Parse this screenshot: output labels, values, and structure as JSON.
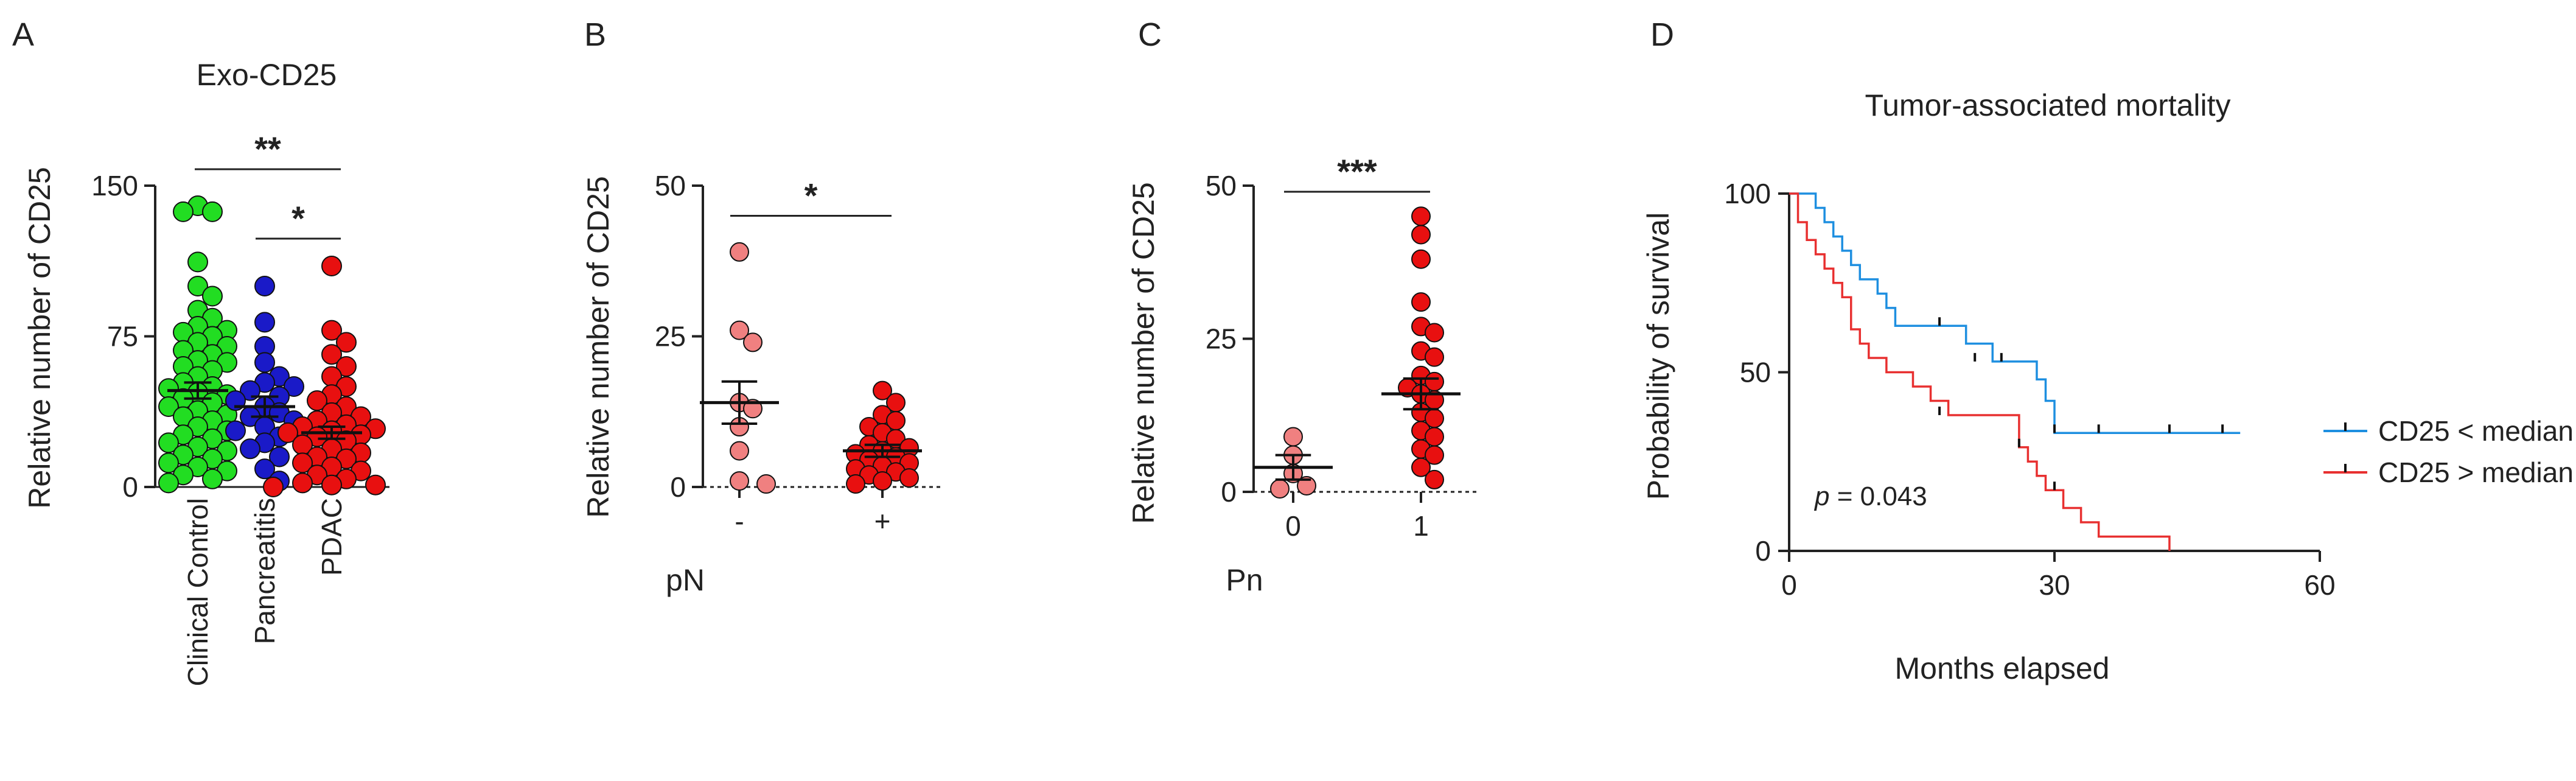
{
  "panels": {
    "A": {
      "letter": "A"
    },
    "B": {
      "letter": "B"
    },
    "C": {
      "letter": "C"
    },
    "D": {
      "letter": "D"
    }
  },
  "chart_data": [
    {
      "id": "A",
      "type": "scatter",
      "title": "Exo-CD25",
      "xlabel": "",
      "ylabel": "Relative number of CD25",
      "ylim": [
        0,
        150
      ],
      "yticks": [
        "0",
        "75",
        "150"
      ],
      "categories": [
        "Clinical Control",
        "Pancreatitis",
        "PDAC"
      ],
      "colors": [
        "#22dd22",
        "#1a1ac8",
        "#e81010"
      ],
      "series": [
        {
          "name": "Clinical Control",
          "mean": 48,
          "sem": 4,
          "values": [
            140,
            137,
            137,
            112,
            100,
            95,
            88,
            84,
            80,
            78,
            77,
            75,
            72,
            70,
            68,
            66,
            63,
            62,
            60,
            58,
            55,
            52,
            50,
            49,
            47,
            46,
            44,
            42,
            40,
            38,
            36,
            35,
            33,
            30,
            28,
            26,
            24,
            22,
            20,
            18,
            16,
            14,
            12,
            10,
            8,
            6,
            4,
            2
          ]
        },
        {
          "name": "Pancreatitis",
          "mean": 40,
          "sem": 5,
          "values": [
            100,
            82,
            70,
            62,
            55,
            52,
            50,
            48,
            45,
            43,
            40,
            37,
            35,
            33,
            30,
            28,
            25,
            22,
            19,
            15,
            9,
            3
          ]
        },
        {
          "name": "PDAC",
          "mean": 27,
          "sem": 3,
          "values": [
            110,
            78,
            72,
            66,
            60,
            55,
            50,
            46,
            43,
            40,
            37,
            35,
            33,
            31,
            30,
            29,
            28,
            27,
            26,
            25,
            23,
            21,
            19,
            17,
            15,
            14,
            12,
            10,
            8,
            6,
            4,
            2,
            1,
            1,
            0
          ]
        }
      ],
      "annotations": [
        {
          "label": "**",
          "from": "Clinical Control",
          "to": "PDAC",
          "y": 142
        },
        {
          "label": "*",
          "from": "Pancreatitis",
          "to": "PDAC",
          "y": 125
        }
      ]
    },
    {
      "id": "B",
      "type": "scatter",
      "title": "",
      "xlabel": "pN",
      "ylabel": "Relative number of CD25",
      "ylim": [
        0,
        50
      ],
      "yticks": [
        "0",
        "25",
        "50"
      ],
      "categories": [
        "-",
        "+"
      ],
      "colors": [
        "#f08080",
        "#e81010"
      ],
      "series": [
        {
          "name": "-",
          "mean": 14,
          "sem": 3.5,
          "values": [
            39,
            26,
            24,
            14,
            13,
            10,
            6,
            1,
            0.5
          ]
        },
        {
          "name": "+",
          "mean": 6,
          "sem": 1,
          "values": [
            16,
            14,
            12,
            11,
            10,
            9,
            8,
            7,
            6.5,
            6,
            5.5,
            5,
            4.5,
            4,
            3.5,
            3,
            2.5,
            2,
            1.5,
            1,
            0.5
          ]
        }
      ],
      "annotations": [
        {
          "label": "*",
          "from": "-",
          "to": "+",
          "y": 45
        }
      ]
    },
    {
      "id": "C",
      "type": "scatter",
      "title": "",
      "xlabel": "Pn",
      "ylabel": "Relative number of CD25",
      "ylim": [
        0,
        50
      ],
      "yticks": [
        "0",
        "25",
        "50"
      ],
      "categories": [
        "0",
        "1"
      ],
      "colors": [
        "#f08080",
        "#e81010"
      ],
      "series": [
        {
          "name": "0",
          "mean": 4,
          "sem": 2,
          "values": [
            9,
            6,
            3,
            1,
            0.5
          ]
        },
        {
          "name": "1",
          "mean": 16,
          "sem": 2.5,
          "values": [
            45,
            42,
            38,
            31,
            27,
            26,
            23,
            22,
            19,
            18,
            17,
            16,
            15,
            13,
            12,
            10,
            9,
            7,
            6,
            4,
            2
          ]
        }
      ],
      "annotations": [
        {
          "label": "***",
          "from": "0",
          "to": "1",
          "y": 49
        }
      ]
    },
    {
      "id": "D",
      "type": "line",
      "title": "Tumor-associated mortality",
      "xlabel": "Months elapsed",
      "ylabel": "Probability of survival",
      "xlim": [
        0,
        60
      ],
      "ylim": [
        0,
        100
      ],
      "xticks": [
        "0",
        "30",
        "60"
      ],
      "yticks": [
        "0",
        "50",
        "100"
      ],
      "annotation": {
        "italic": "p",
        "text": " = 0.043"
      },
      "series": [
        {
          "name": "CD25 < median",
          "color": "#1e8fe0",
          "steps": [
            [
              0,
              100
            ],
            [
              3,
              96
            ],
            [
              4,
              92
            ],
            [
              5,
              88
            ],
            [
              6,
              84
            ],
            [
              7,
              80
            ],
            [
              8,
              76
            ],
            [
              10,
              72
            ],
            [
              11,
              68
            ],
            [
              12,
              63
            ],
            [
              17,
              63
            ],
            [
              20,
              58
            ],
            [
              23,
              53
            ],
            [
              27,
              53
            ],
            [
              28,
              48
            ],
            [
              29,
              42
            ],
            [
              30,
              33
            ],
            [
              51,
              33
            ]
          ],
          "censors": [
            [
              17,
              63
            ],
            [
              21,
              53
            ],
            [
              24,
              53
            ],
            [
              30,
              33
            ],
            [
              35,
              33
            ],
            [
              43,
              33
            ],
            [
              49,
              33
            ]
          ]
        },
        {
          "name": "CD25 > median",
          "color": "#e83030",
          "steps": [
            [
              0,
              100
            ],
            [
              1,
              92
            ],
            [
              2,
              87
            ],
            [
              3,
              83
            ],
            [
              4,
              79
            ],
            [
              5,
              75
            ],
            [
              6,
              71
            ],
            [
              7,
              62
            ],
            [
              8,
              58
            ],
            [
              9,
              54
            ],
            [
              11,
              50
            ],
            [
              14,
              46
            ],
            [
              16,
              42
            ],
            [
              18,
              38
            ],
            [
              26,
              29
            ],
            [
              27,
              25
            ],
            [
              28,
              21
            ],
            [
              29,
              17
            ],
            [
              31,
              12
            ],
            [
              33,
              8
            ],
            [
              35,
              4
            ],
            [
              43,
              4
            ],
            [
              43,
              0
            ]
          ],
          "censors": [
            [
              17,
              38
            ],
            [
              26,
              29
            ],
            [
              30,
              17
            ]
          ]
        }
      ]
    }
  ]
}
